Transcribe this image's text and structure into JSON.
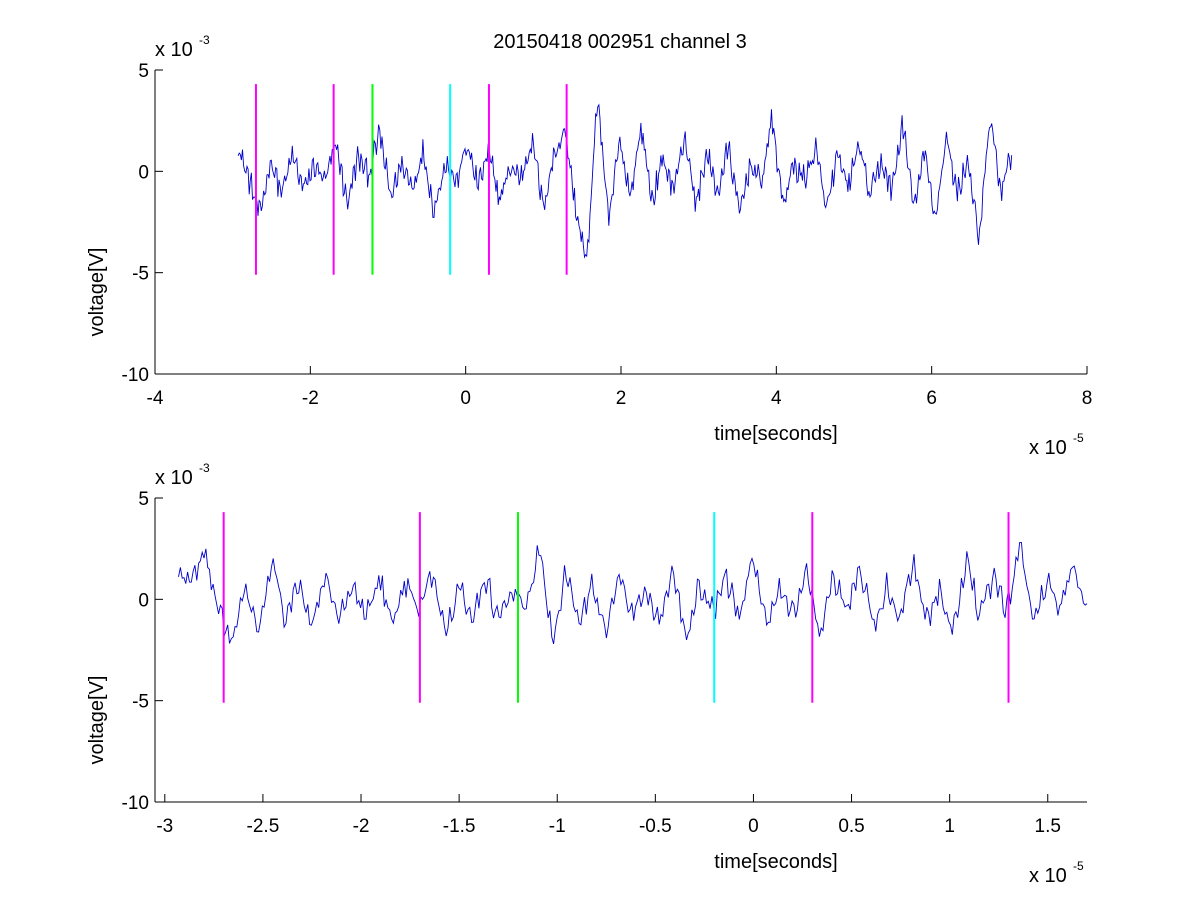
{
  "figure": {
    "title": "20150418 002951 channel 3"
  },
  "chart_data": [
    {
      "type": "line",
      "title": "20150418 002951 channel 3",
      "xlabel": "time[seconds]",
      "ylabel": "voltage[V]",
      "x_multiplier": {
        "base": "x 10",
        "exponent": "-5"
      },
      "y_multiplier": {
        "base": "x 10",
        "exponent": "-3"
      },
      "xlim": [
        -4,
        8
      ],
      "ylim": [
        -10,
        5
      ],
      "x_ticks": [
        -4,
        -2,
        0,
        2,
        4,
        6,
        8
      ],
      "x_tick_labels": [
        "-4",
        "-2",
        "0",
        "2",
        "4",
        "6",
        "8"
      ],
      "y_ticks": [
        -10,
        -5,
        0,
        5
      ],
      "y_tick_labels": [
        "-10",
        "-5",
        "0",
        "5"
      ],
      "grid": false,
      "series": [
        {
          "color": "#0000cc",
          "x_start": -2.93,
          "x_end": 7.03,
          "points": 700,
          "sampled_y": [
            1.2,
            -0.4,
            -2.2,
            0.6,
            -1.1,
            0.8,
            -0.9,
            0.3,
            -0.5,
            1.4,
            -1.6,
            0.7,
            -0.2,
            1.9,
            -1.3,
            0.4,
            -0.8,
            1.0,
            -2.0,
            0.5,
            -0.6,
            1.3,
            -0.7,
            0.9,
            -1.4,
            0.2,
            -0.3,
            1.6,
            -1.8,
            0.8,
            2.1,
            -1.9,
            -4.6,
            3.8,
            -2.6,
            1.5,
            -1.2,
            2.2,
            -1.5,
            0.6,
            -0.9,
            1.8,
            -1.7,
            0.9,
            -1.1,
            1.2,
            -2.1,
            0.4,
            -0.6,
            2.6,
            -1.6,
            0.3,
            -0.4,
            1.1,
            -1.9,
            0.7,
            -0.8,
            1.4,
            -1.3,
            0.5,
            -1.0,
            2.4,
            -1.8,
            0.9,
            -2.3,
            1.7,
            -1.1,
            0.6,
            -3.6,
            2.7,
            -1.0,
            0.8
          ],
          "y_min": -4.6,
          "y_max": 3.8
        }
      ],
      "event_markers": [
        {
          "x": -2.7,
          "color": "#ff00ff",
          "y_from": -5.1,
          "y_to": 4.3
        },
        {
          "x": -1.7,
          "color": "#ff00ff",
          "y_from": -5.1,
          "y_to": 4.3
        },
        {
          "x": -1.2,
          "color": "#00ff00",
          "y_from": -5.1,
          "y_to": 4.3
        },
        {
          "x": -0.2,
          "color": "#00ffff",
          "y_from": -5.1,
          "y_to": 4.3
        },
        {
          "x": 0.3,
          "color": "#ff00ff",
          "y_from": -5.1,
          "y_to": 4.3
        },
        {
          "x": 1.3,
          "color": "#ff00ff",
          "y_from": -5.1,
          "y_to": 4.3
        }
      ]
    },
    {
      "type": "line",
      "title": "",
      "xlabel": "time[seconds]",
      "ylabel": "voltage[V]",
      "x_multiplier": {
        "base": "x 10",
        "exponent": "-5"
      },
      "y_multiplier": {
        "base": "x 10",
        "exponent": "-3"
      },
      "xlim": [
        -3.05,
        1.7
      ],
      "ylim": [
        -10,
        5
      ],
      "x_ticks": [
        -3,
        -2.5,
        -2,
        -1.5,
        -1,
        -0.5,
        0,
        0.5,
        1,
        1.5
      ],
      "x_tick_labels": [
        "-3",
        "-2.5",
        "-2",
        "-1.5",
        "-1",
        "-0.5",
        "0",
        "0.5",
        "1",
        "1.5"
      ],
      "y_ticks": [
        -10,
        -5,
        0,
        5
      ],
      "y_tick_labels": [
        "-10",
        "-5",
        "0",
        "5"
      ],
      "grid": false,
      "series": [
        {
          "color": "#0000cc",
          "x_start": -2.93,
          "x_end": 1.7,
          "points": 500,
          "sampled_y": [
            1.2,
            0.9,
            2.2,
            -0.4,
            -2.2,
            0.5,
            -1.6,
            1.8,
            -0.9,
            0.7,
            -1.3,
            1.2,
            -1.0,
            0.4,
            -0.6,
            1.1,
            -1.2,
            0.8,
            -0.5,
            1.3,
            -1.4,
            0.6,
            -0.8,
            1.0,
            -1.1,
            0.3,
            -0.4,
            2.6,
            -2.1,
            1.5,
            -1.5,
            0.9,
            -1.8,
            1.4,
            -0.7,
            0.5,
            -1.2,
            1.6,
            -1.9,
            0.8,
            -0.6,
            1.1,
            -1.0,
            2.1,
            -1.3,
            0.4,
            -0.9,
            1.2,
            -2.0,
            1.0,
            -0.5,
            1.7,
            -1.4,
            0.6,
            -0.8,
            1.9,
            -1.1,
            0.7,
            -1.6,
            2.0,
            -0.9,
            1.1,
            -0.6,
            2.8,
            -1.0,
            0.8,
            -0.3,
            1.7,
            -0.5
          ],
          "y_min": -2.2,
          "y_max": 2.8
        }
      ],
      "event_markers": [
        {
          "x": -2.7,
          "color": "#ff00ff",
          "y_from": -5.1,
          "y_to": 4.3
        },
        {
          "x": -1.7,
          "color": "#ff00ff",
          "y_from": -5.1,
          "y_to": 4.3
        },
        {
          "x": -1.2,
          "color": "#00ff00",
          "y_from": -5.1,
          "y_to": 4.3
        },
        {
          "x": -0.2,
          "color": "#00ffff",
          "y_from": -5.1,
          "y_to": 4.3
        },
        {
          "x": 0.3,
          "color": "#ff00ff",
          "y_from": -5.1,
          "y_to": 4.3
        },
        {
          "x": 1.3,
          "color": "#ff00ff",
          "y_from": -5.1,
          "y_to": 4.3
        }
      ]
    }
  ]
}
